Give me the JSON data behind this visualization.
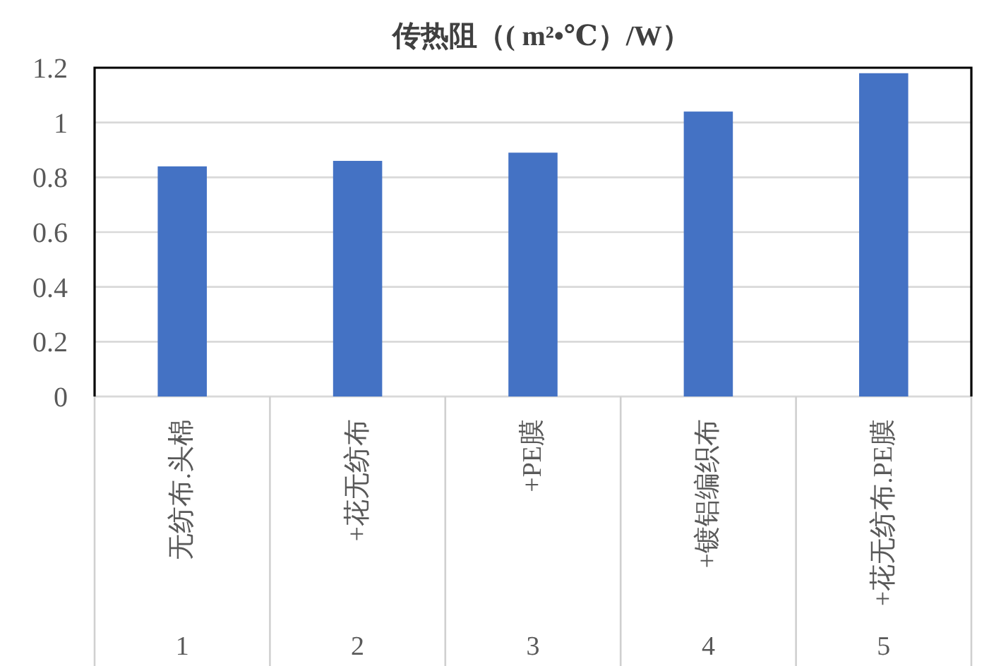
{
  "chart_data": {
    "type": "bar",
    "title": "传热阻（( m²•℃）/W）",
    "categories": [
      "无纺布.头棉",
      "+花无纺布",
      "+PE膜",
      "+镀铝编织布",
      "+花无纺布.PE膜"
    ],
    "values": [
      0.84,
      0.86,
      0.89,
      1.04,
      1.18
    ],
    "color": "#4472c4",
    "ylim": [
      0,
      1.2
    ],
    "yticks": [
      0,
      0.2,
      0.4,
      0.6,
      0.8,
      1,
      1.2
    ],
    "grid": "y",
    "annotations": [
      "1",
      "2",
      "3",
      "4",
      "5"
    ]
  }
}
